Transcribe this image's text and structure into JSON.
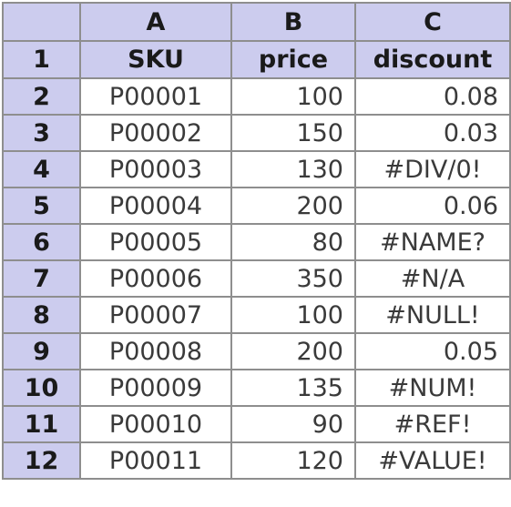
{
  "columns": [
    "A",
    "B",
    "C"
  ],
  "headers": [
    "SKU",
    "price",
    "discount"
  ],
  "header_row_number": "1",
  "rows": [
    {
      "n": "2",
      "sku": "P00001",
      "price": "100",
      "discount": "0.08",
      "discount_is_error": false
    },
    {
      "n": "3",
      "sku": "P00002",
      "price": "150",
      "discount": "0.03",
      "discount_is_error": false
    },
    {
      "n": "4",
      "sku": "P00003",
      "price": "130",
      "discount": "#DIV/0!",
      "discount_is_error": true
    },
    {
      "n": "5",
      "sku": "P00004",
      "price": "200",
      "discount": "0.06",
      "discount_is_error": false
    },
    {
      "n": "6",
      "sku": "P00005",
      "price": "80",
      "discount": "#NAME?",
      "discount_is_error": true
    },
    {
      "n": "7",
      "sku": "P00006",
      "price": "350",
      "discount": "#N/A",
      "discount_is_error": true
    },
    {
      "n": "8",
      "sku": "P00007",
      "price": "100",
      "discount": "#NULL!",
      "discount_is_error": true
    },
    {
      "n": "9",
      "sku": "P00008",
      "price": "200",
      "discount": "0.05",
      "discount_is_error": false
    },
    {
      "n": "10",
      "sku": "P00009",
      "price": "135",
      "discount": "#NUM!",
      "discount_is_error": true
    },
    {
      "n": "11",
      "sku": "P00010",
      "price": "90",
      "discount": "#REF!",
      "discount_is_error": true
    },
    {
      "n": "12",
      "sku": "P00011",
      "price": "120",
      "discount": "#VALUE!",
      "discount_is_error": true
    }
  ],
  "colors": {
    "header_fill": "#ccccee",
    "grid_line": "#8e8e8e",
    "cell_text": "#3a3a3a"
  }
}
